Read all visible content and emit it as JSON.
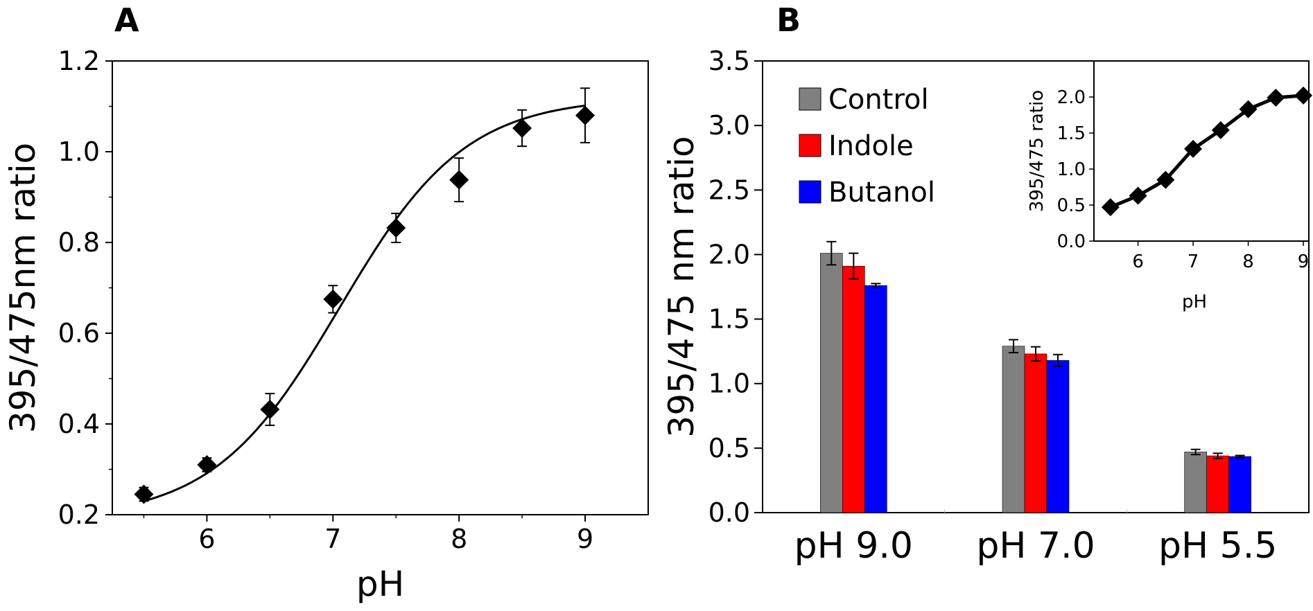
{
  "chart_data": [
    {
      "panel": "A",
      "type": "scatter",
      "xlabel": "pH",
      "ylabel": "395/475nm ratio",
      "xlim": [
        5.25,
        9.5
      ],
      "ylim": [
        0.2,
        1.2
      ],
      "xticks": [
        6,
        7,
        8,
        9
      ],
      "xtick_labels": [
        "6",
        "7",
        "8",
        "9"
      ],
      "yticks": [
        0.2,
        0.4,
        0.6,
        0.8,
        1.0,
        1.2
      ],
      "ytick_labels": [
        "0.2",
        "0.4",
        "0.6",
        "0.8",
        "1.0",
        "1.2"
      ],
      "x": [
        5.5,
        6.0,
        6.5,
        7.0,
        7.5,
        8.0,
        8.5,
        9.0
      ],
      "y": [
        0.245,
        0.31,
        0.432,
        0.675,
        0.832,
        0.938,
        1.052,
        1.08
      ],
      "yerr": [
        0.015,
        0.015,
        0.035,
        0.03,
        0.032,
        0.048,
        0.04,
        0.06
      ],
      "fit": {
        "model": "sigmoid",
        "bottom": 0.19,
        "top": 1.12,
        "pKa": 7.05,
        "slope": 0.5
      },
      "grid": false,
      "marker": "diamond"
    },
    {
      "panel": "B",
      "type": "bar",
      "ylabel": "395/475 nm ratio",
      "categories": [
        "pH 9.0",
        "pH 7.0",
        "pH 5.5"
      ],
      "ylim": [
        0.0,
        3.5
      ],
      "yticks": [
        0.0,
        0.5,
        1.0,
        1.5,
        2.0,
        2.5,
        3.0,
        3.5
      ],
      "ytick_labels": [
        "0.0",
        "0.5",
        "1.0",
        "1.5",
        "2.0",
        "2.5",
        "3.0",
        "3.5"
      ],
      "series": [
        {
          "name": "Control",
          "color": "#808080",
          "values": [
            2.01,
            1.29,
            0.47
          ],
          "errors": [
            0.09,
            0.05,
            0.02
          ]
        },
        {
          "name": "Indole",
          "color": "#ff0000",
          "values": [
            1.91,
            1.23,
            0.44
          ],
          "errors": [
            0.1,
            0.055,
            0.02
          ]
        },
        {
          "name": "Butanol",
          "color": "#0000ff",
          "values": [
            1.76,
            1.18,
            0.435
          ],
          "errors": [
            0.015,
            0.045,
            0.008
          ]
        }
      ],
      "legend": "top-left",
      "grid": false
    },
    {
      "panel": "B-inset",
      "type": "line",
      "xlabel": "pH",
      "ylabel": "395/475 ratio",
      "xlim": [
        5.2,
        9.1
      ],
      "ylim": [
        0.0,
        2.5
      ],
      "xticks": [
        6,
        7,
        8,
        9
      ],
      "xtick_labels": [
        "6",
        "7",
        "8",
        "9"
      ],
      "yticks": [
        0.0,
        0.5,
        1.0,
        1.5,
        2.0
      ],
      "ytick_labels": [
        "0.0",
        "0.5",
        "1.0",
        "1.5",
        "2.0"
      ],
      "x": [
        5.5,
        6.0,
        6.5,
        7.0,
        7.5,
        8.0,
        8.5,
        9.0
      ],
      "y": [
        0.47,
        0.63,
        0.85,
        1.28,
        1.54,
        1.83,
        1.99,
        2.02
      ],
      "marker": "diamond"
    }
  ],
  "panels": {
    "a_letter": "A",
    "b_letter": "B"
  }
}
